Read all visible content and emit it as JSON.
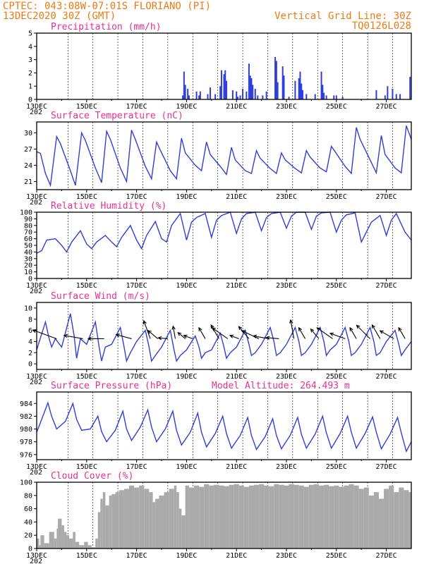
{
  "header": {
    "line1_left": "CPTEC:  043:08W-07:01S  FLORIANO (PI)",
    "line2_left": "13DEC2020 30Z (GMT)",
    "line2_right": "Vertical Grid Line: 30Z",
    "line3_right": "TQ0126L028"
  },
  "colors": {
    "header": "#ee7a12",
    "panel_title": "#ee2f8c",
    "series": "#2f3ed8",
    "cloud": "#aaaaaa",
    "wind_arrow": "#000000"
  },
  "x_axis": {
    "start_day": 13,
    "end_day": 28,
    "tick_labels": [
      "13DEC",
      "15DEC",
      "17DEC",
      "19DEC",
      "21DEC",
      "23DEC",
      "25DEC",
      "27DEC"
    ],
    "tick_days": [
      13,
      15,
      17,
      19,
      21,
      23,
      25,
      27
    ],
    "first_tick_sublabel": "202"
  },
  "chart_data": [
    {
      "type": "bar",
      "title": "Precipitation (mm/h)",
      "ylim": [
        0,
        5
      ],
      "yticks": [
        0,
        1,
        2,
        3,
        4,
        5
      ],
      "grid": true,
      "x": [
        18.85,
        18.9,
        18.95,
        19.05,
        19.1,
        19.4,
        19.5,
        19.55,
        19.85,
        19.95,
        20.15,
        20.35,
        20.4,
        20.5,
        20.55,
        20.6,
        20.85,
        21.0,
        21.05,
        21.15,
        21.25,
        21.4,
        21.5,
        21.55,
        21.6,
        21.65,
        21.75,
        21.85,
        22.05,
        22.2,
        22.55,
        22.6,
        22.65,
        22.85,
        22.9,
        23.1,
        23.35,
        23.5,
        23.55,
        23.6,
        23.65,
        23.8,
        24.15,
        24.4,
        24.45,
        24.5,
        24.6,
        24.9,
        25.0,
        25.25,
        26.6,
        26.95,
        27.05,
        27.25,
        27.4,
        27.55,
        27.95
      ],
      "values": [
        0.3,
        2.1,
        1.1,
        0.8,
        0.3,
        0.6,
        0.3,
        0.6,
        0.4,
        0.9,
        0.4,
        1.0,
        2.2,
        1.9,
        2.2,
        1.4,
        0.7,
        0.6,
        0.2,
        0.3,
        0.8,
        0.6,
        2.7,
        1.8,
        1.6,
        1.1,
        0.8,
        0.3,
        0.3,
        0.6,
        3.2,
        2.9,
        1.3,
        2.5,
        1.8,
        0.2,
        1.4,
        1.6,
        2.1,
        1.2,
        0.7,
        0.4,
        0.4,
        2.1,
        1.1,
        0.5,
        0.3,
        0.3,
        0.3,
        0.2,
        0.7,
        0.3,
        1.0,
        0.8,
        0.4,
        0.4,
        1.7
      ]
    },
    {
      "type": "line",
      "title": "Surface Temperature (nC)",
      "ylim": [
        19.5,
        32
      ],
      "yticks": [
        21,
        24,
        27,
        30
      ],
      "grid": true,
      "series": [
        {
          "x": [
            13.0,
            13.15,
            13.35,
            13.55,
            13.8,
            13.95,
            14.35,
            14.55,
            14.8,
            14.95,
            15.35,
            15.6,
            15.8,
            15.95,
            16.35,
            16.6,
            16.8,
            16.95,
            17.35,
            17.6,
            17.8,
            17.95,
            18.35,
            18.6,
            18.8,
            18.95,
            19.35,
            19.6,
            19.8,
            19.95,
            20.35,
            20.6,
            20.8,
            20.95,
            21.35,
            21.6,
            21.8,
            21.95,
            22.35,
            22.6,
            22.8,
            22.95,
            23.35,
            23.6,
            23.8,
            23.95,
            24.35,
            24.6,
            24.8,
            24.95,
            25.35,
            25.6,
            25.8,
            25.95,
            26.35,
            26.6,
            26.8,
            26.95,
            27.35,
            27.6,
            27.8,
            28.0
          ],
          "values": [
            26.5,
            26.2,
            22.5,
            20.3,
            29.3,
            28.0,
            23.0,
            20.3,
            30.0,
            28.6,
            23.5,
            20.8,
            30.3,
            28.8,
            23.5,
            21.0,
            30.5,
            28.8,
            23.8,
            21.5,
            28.3,
            26.8,
            23.0,
            21.5,
            29.0,
            26.3,
            24.0,
            23.0,
            28.3,
            26.0,
            23.8,
            22.3,
            27.3,
            25.0,
            23.0,
            22.5,
            26.7,
            25.3,
            23.4,
            22.5,
            26.3,
            25.0,
            23.4,
            22.6,
            26.7,
            25.5,
            23.5,
            22.8,
            27.5,
            26.5,
            23.8,
            22.5,
            31.0,
            28.8,
            25.0,
            22.6,
            29.5,
            26.0,
            23.5,
            22.6,
            31.3,
            28.8
          ]
        }
      ]
    },
    {
      "type": "line",
      "title": "Relative Humidity (%)",
      "ylim": [
        0,
        100
      ],
      "yticks": [
        0,
        10,
        20,
        30,
        40,
        50,
        60,
        70,
        80,
        90,
        100
      ],
      "grid": true,
      "series": [
        {
          "x": [
            13.0,
            13.2,
            13.4,
            13.75,
            14.0,
            14.2,
            14.4,
            14.75,
            15.0,
            15.2,
            15.4,
            15.75,
            16.0,
            16.2,
            16.4,
            16.75,
            17.0,
            17.2,
            17.4,
            17.75,
            18.0,
            18.2,
            18.4,
            18.75,
            19.0,
            19.2,
            19.4,
            19.75,
            20.0,
            20.2,
            20.4,
            20.75,
            21.0,
            21.2,
            21.4,
            21.75,
            22.0,
            22.2,
            22.4,
            22.75,
            23.0,
            23.2,
            23.4,
            23.75,
            24.0,
            24.2,
            24.4,
            24.75,
            25.0,
            25.2,
            25.4,
            25.75,
            26.0,
            26.2,
            26.4,
            26.75,
            27.0,
            27.2,
            27.4,
            27.75,
            28.0
          ],
          "values": [
            38,
            42,
            58,
            60,
            50,
            40,
            55,
            72,
            52,
            45,
            55,
            65,
            55,
            48,
            62,
            80,
            58,
            45,
            65,
            86,
            60,
            55,
            80,
            98,
            58,
            85,
            92,
            98,
            62,
            88,
            95,
            100,
            68,
            90,
            98,
            100,
            72,
            92,
            98,
            100,
            76,
            94,
            100,
            100,
            74,
            94,
            99,
            100,
            70,
            88,
            96,
            99,
            55,
            70,
            85,
            95,
            65,
            88,
            98,
            70,
            58
          ]
        }
      ]
    },
    {
      "type": "line",
      "title": "Surface Wind (m/s)",
      "ylim": [
        -1,
        11
      ],
      "yticks": [
        0,
        2,
        4,
        6,
        8,
        10
      ],
      "grid": true,
      "series": [
        {
          "x": [
            13.0,
            13.35,
            13.5,
            13.6,
            13.75,
            14.0,
            14.35,
            14.5,
            14.6,
            14.75,
            15.0,
            15.35,
            15.5,
            15.6,
            15.75,
            16.0,
            16.35,
            16.5,
            16.6,
            16.75,
            17.0,
            17.35,
            17.5,
            17.6,
            17.75,
            18.0,
            18.35,
            18.5,
            18.6,
            18.75,
            19.0,
            19.35,
            19.5,
            19.6,
            19.75,
            20.0,
            20.35,
            20.5,
            20.6,
            20.75,
            21.0,
            21.35,
            21.5,
            21.6,
            21.75,
            22.0,
            22.35,
            22.5,
            22.6,
            22.75,
            23.0,
            23.35,
            23.5,
            23.6,
            23.75,
            24.0,
            24.35,
            24.5,
            24.6,
            24.75,
            25.0,
            25.35,
            25.5,
            25.6,
            25.75,
            26.0,
            26.35,
            26.5,
            26.6,
            26.75,
            27.0,
            27.35,
            27.5,
            27.6,
            27.75,
            28.0
          ],
          "values": [
            2.5,
            7.5,
            4.5,
            3.0,
            4.5,
            3.0,
            9.0,
            5.0,
            1.0,
            4.5,
            3.5,
            7.5,
            3.0,
            0.5,
            3.0,
            3.5,
            6.5,
            3.0,
            0.5,
            2.0,
            4.0,
            6.0,
            3.0,
            0.5,
            1.5,
            3.0,
            6.0,
            2.5,
            0.5,
            1.5,
            2.5,
            5.0,
            3.0,
            1.0,
            2.0,
            2.5,
            5.5,
            3.0,
            1.0,
            2.0,
            3.0,
            6.0,
            3.5,
            1.5,
            2.0,
            3.5,
            6.5,
            4.0,
            1.5,
            2.0,
            3.5,
            6.5,
            4.0,
            1.5,
            2.0,
            3.5,
            6.5,
            4.0,
            1.5,
            2.5,
            3.5,
            6.5,
            4.0,
            1.5,
            2.0,
            3.5,
            6.5,
            4.0,
            1.5,
            2.0,
            4.0,
            6.0,
            3.5,
            1.5,
            2.5,
            4.0
          ]
        }
      ],
      "wind_barbs": {
        "x": [
          13.8,
          14.85,
          15.7,
          16.8,
          17.55,
          17.85,
          18.25,
          18.55,
          18.95,
          19.25,
          19.75,
          20.3,
          20.65,
          21.1,
          21.5,
          21.9,
          22.3,
          22.7,
          23.3,
          23.75,
          24.3,
          24.85,
          25.35,
          25.8,
          26.35,
          26.75,
          27.3,
          27.75
        ],
        "speed": [
          4.0,
          3.0,
          2.5,
          2.5,
          3.0,
          2.0,
          1.5,
          2.0,
          1.5,
          1.5,
          2.0,
          2.5,
          3.0,
          1.5,
          2.5,
          3.0,
          2.5,
          2.0,
          3.0,
          2.0,
          2.0,
          3.0,
          2.5,
          2.0,
          3.0,
          2.5,
          2.5,
          2.0
        ],
        "direction_deg": [
          110,
          100,
          90,
          105,
          160,
          130,
          95,
          170,
          130,
          110,
          150,
          150,
          125,
          110,
          140,
          115,
          100,
          95,
          170,
          150,
          140,
          125,
          110,
          150,
          135,
          150,
          120,
          150
        ]
      }
    },
    {
      "type": "line",
      "title": "Surface Pressure (hPa)",
      "annotation": "Model Altitude: 264.493 m",
      "ylim": [
        975.2,
        985.8
      ],
      "yticks": [
        976,
        978,
        980,
        982,
        984
      ],
      "grid": true,
      "series": [
        {
          "x": [
            13.0,
            13.15,
            13.45,
            13.6,
            13.8,
            14.15,
            14.45,
            14.6,
            14.8,
            15.15,
            15.45,
            15.6,
            15.8,
            16.15,
            16.45,
            16.6,
            16.8,
            17.15,
            17.45,
            17.6,
            17.8,
            18.15,
            18.45,
            18.6,
            18.8,
            19.15,
            19.45,
            19.6,
            19.8,
            20.15,
            20.45,
            20.6,
            20.8,
            21.15,
            21.45,
            21.6,
            21.8,
            22.15,
            22.45,
            22.6,
            22.8,
            23.15,
            23.45,
            23.6,
            23.8,
            24.15,
            24.45,
            24.6,
            24.8,
            25.15,
            25.45,
            25.6,
            25.8,
            26.15,
            26.45,
            26.6,
            26.8,
            27.15,
            27.45,
            27.6,
            27.8,
            28.0
          ],
          "values": [
            979.5,
            981.0,
            984.1,
            982.0,
            980.0,
            981.2,
            984.0,
            981.5,
            979.8,
            980.0,
            982.0,
            979.6,
            978.0,
            979.8,
            982.8,
            980.0,
            978.2,
            980.3,
            983.0,
            980.3,
            978.0,
            980.0,
            982.8,
            979.8,
            977.5,
            979.5,
            982.5,
            979.5,
            977.2,
            979.3,
            982.0,
            979.3,
            977.0,
            979.0,
            981.8,
            979.0,
            976.8,
            978.8,
            981.6,
            979.0,
            976.9,
            979.0,
            981.8,
            979.2,
            977.0,
            979.2,
            982.0,
            979.4,
            977.0,
            979.3,
            982.0,
            979.5,
            977.0,
            979.3,
            981.9,
            979.5,
            976.9,
            979.2,
            981.8,
            979.4,
            976.5,
            978.0
          ]
        }
      ]
    },
    {
      "type": "area",
      "title": "Cloud Cover (%)",
      "ylim": [
        0,
        100
      ],
      "yticks": [
        0,
        20,
        40,
        60,
        80,
        100
      ],
      "grid": true,
      "series": [
        {
          "x": [
            13.0,
            13.1,
            13.15,
            13.3,
            13.5,
            13.7,
            13.8,
            13.85,
            14.0,
            14.1,
            14.2,
            14.3,
            14.45,
            14.55,
            14.7,
            14.9,
            15.05,
            15.2,
            15.35,
            15.45,
            15.55,
            15.65,
            15.75,
            15.9,
            16.0,
            16.15,
            16.3,
            16.5,
            16.7,
            16.9,
            17.1,
            17.3,
            17.5,
            17.65,
            17.75,
            17.9,
            18.1,
            18.3,
            18.5,
            18.6,
            18.7,
            18.8,
            18.95,
            19.1,
            19.3,
            19.5,
            19.7,
            19.9,
            20.1,
            20.3,
            20.5,
            20.7,
            20.9,
            21.1,
            21.3,
            21.5,
            21.7,
            21.9,
            22.1,
            22.3,
            22.5,
            22.7,
            22.9,
            23.1,
            23.3,
            23.5,
            23.7,
            23.9,
            24.1,
            24.3,
            24.5,
            24.7,
            24.9,
            25.1,
            25.3,
            25.5,
            25.7,
            25.9,
            26.1,
            26.3,
            26.5,
            26.7,
            26.9,
            27.1,
            27.3,
            27.5,
            27.7,
            27.9,
            28.0
          ],
          "values": [
            15,
            5,
            20,
            8,
            25,
            15,
            30,
            45,
            35,
            25,
            20,
            15,
            25,
            10,
            5,
            10,
            5,
            2,
            15,
            55,
            75,
            85,
            65,
            80,
            82,
            85,
            88,
            90,
            95,
            92,
            95,
            90,
            85,
            70,
            75,
            80,
            85,
            90,
            95,
            85,
            60,
            50,
            95,
            92,
            95,
            93,
            97,
            95,
            96,
            95,
            94,
            96,
            97,
            95,
            93,
            95,
            96,
            97,
            95,
            94,
            97,
            96,
            95,
            97,
            96,
            95,
            93,
            96,
            97,
            95,
            96,
            94,
            95,
            93,
            95,
            97,
            95,
            90,
            92,
            80,
            85,
            75,
            90,
            95,
            85,
            92,
            88,
            85,
            90
          ]
        }
      ]
    }
  ]
}
